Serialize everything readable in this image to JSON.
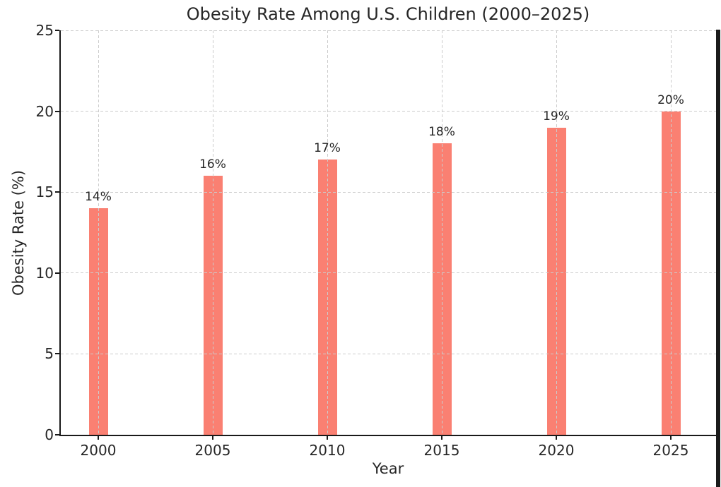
{
  "chart_data": {
    "type": "bar",
    "title": "Obesity Rate Among U.S. Children (2000–2025)",
    "xlabel": "Year",
    "ylabel": "Obesity Rate (%)",
    "categories": [
      "2000",
      "2005",
      "2010",
      "2015",
      "2020",
      "2025"
    ],
    "values": [
      14,
      16,
      17,
      18,
      19,
      20
    ],
    "value_labels": [
      "14%",
      "16%",
      "17%",
      "18%",
      "19%",
      "20%"
    ],
    "ylim": [
      0,
      25
    ],
    "yticks": [
      0,
      5,
      10,
      15,
      20,
      25
    ],
    "grid": "dashed gridlines on both axes, drawn over bars",
    "legend_position": "none",
    "bar_color": "#FA8072",
    "grid_color": "#cccccc",
    "axis_color": "#1a1a1a",
    "text_color": "#262626",
    "background_color": "#ffffff"
  }
}
